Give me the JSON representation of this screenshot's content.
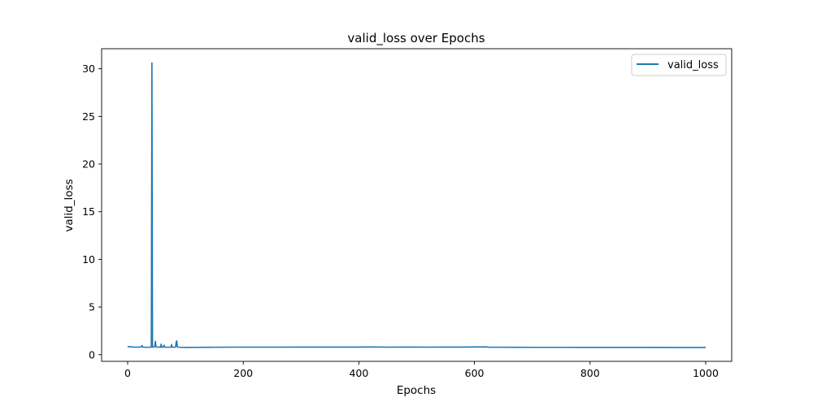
{
  "chart_data": {
    "type": "line",
    "title": "valid_loss over Epochs",
    "xlabel": "Epochs",
    "ylabel": "valid_loss",
    "xlim": [
      -45,
      1045
    ],
    "ylim": [
      -0.7,
      32.1
    ],
    "xticks": [
      0,
      200,
      400,
      600,
      800,
      1000
    ],
    "yticks": [
      0,
      5,
      10,
      15,
      20,
      25,
      30
    ],
    "grid": false,
    "legend": "top-right",
    "series": [
      {
        "name": "valid_loss",
        "color": "#1f77b4",
        "points": [
          [
            0,
            0.85
          ],
          [
            5,
            0.82
          ],
          [
            10,
            0.8
          ],
          [
            15,
            0.79
          ],
          [
            20,
            0.8
          ],
          [
            24,
            0.83
          ],
          [
            25,
            0.95
          ],
          [
            26,
            0.8
          ],
          [
            30,
            0.78
          ],
          [
            35,
            0.78
          ],
          [
            40,
            0.78
          ],
          [
            41,
            0.8
          ],
          [
            42,
            30.6
          ],
          [
            43,
            0.8
          ],
          [
            45,
            0.78
          ],
          [
            47,
            0.9
          ],
          [
            48,
            1.4
          ],
          [
            49,
            0.8
          ],
          [
            52,
            0.79
          ],
          [
            55,
            0.8
          ],
          [
            57,
            0.78
          ],
          [
            58,
            1.1
          ],
          [
            59,
            0.78
          ],
          [
            62,
            0.8
          ],
          [
            63,
            1.0
          ],
          [
            64,
            0.79
          ],
          [
            70,
            0.78
          ],
          [
            75,
            0.79
          ],
          [
            76,
            1.05
          ],
          [
            77,
            0.78
          ],
          [
            80,
            0.78
          ],
          [
            83,
            0.8
          ],
          [
            84,
            1.3
          ],
          [
            85,
            1.45
          ],
          [
            86,
            0.8
          ],
          [
            90,
            0.78
          ],
          [
            100,
            0.76
          ],
          [
            120,
            0.77
          ],
          [
            150,
            0.78
          ],
          [
            200,
            0.79
          ],
          [
            250,
            0.79
          ],
          [
            300,
            0.8
          ],
          [
            350,
            0.8
          ],
          [
            400,
            0.8
          ],
          [
            420,
            0.81
          ],
          [
            450,
            0.79
          ],
          [
            480,
            0.8
          ],
          [
            500,
            0.8
          ],
          [
            520,
            0.79
          ],
          [
            550,
            0.8
          ],
          [
            580,
            0.8
          ],
          [
            600,
            0.81
          ],
          [
            620,
            0.82
          ],
          [
            625,
            0.78
          ],
          [
            650,
            0.78
          ],
          [
            700,
            0.77
          ],
          [
            750,
            0.77
          ],
          [
            800,
            0.76
          ],
          [
            850,
            0.76
          ],
          [
            900,
            0.76
          ],
          [
            950,
            0.75
          ],
          [
            1000,
            0.75
          ]
        ]
      }
    ]
  }
}
